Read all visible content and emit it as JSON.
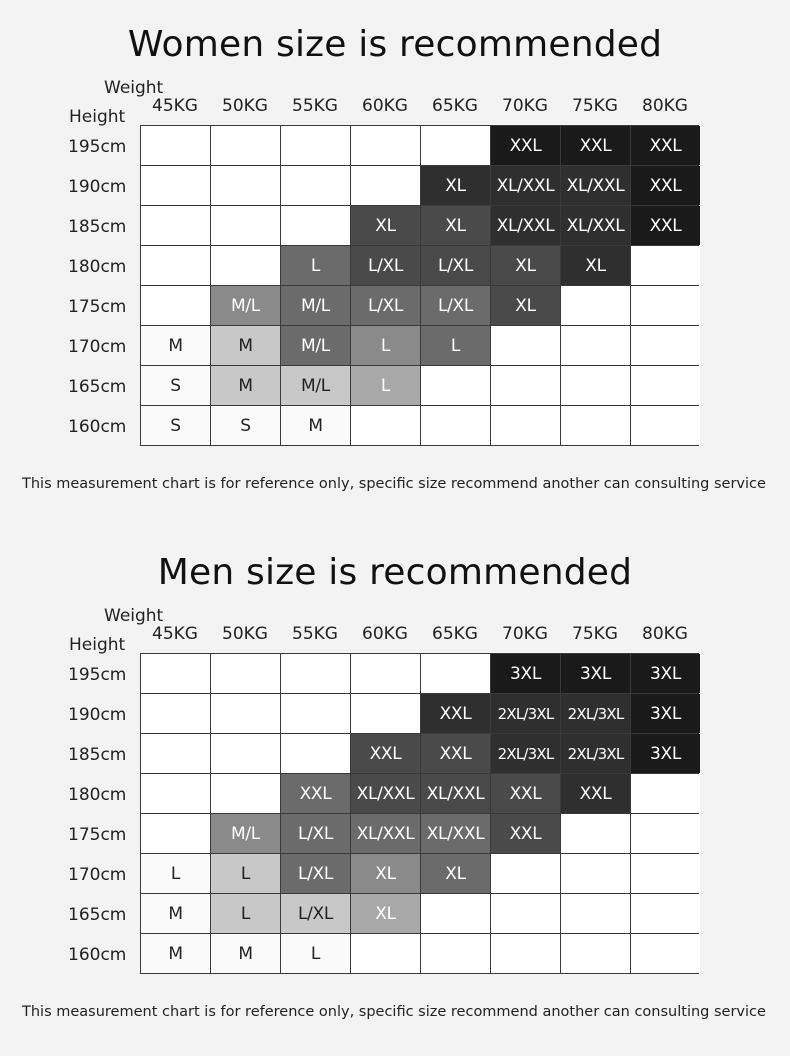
{
  "women": {
    "title": "Women size is recommended",
    "weight_label": "Weight",
    "height_label": "Height",
    "weights": [
      "45KG",
      "50KG",
      "55KG",
      "60KG",
      "65KG",
      "70KG",
      "75KG",
      "80KG"
    ],
    "heights": [
      "195cm",
      "190cm",
      "185cm",
      "180cm",
      "175cm",
      "170cm",
      "165cm",
      "160cm"
    ],
    "rows": [
      [
        "",
        "",
        "",
        "",
        "",
        "XXL",
        "XXL",
        "XXL"
      ],
      [
        "",
        "",
        "",
        "",
        "XL",
        "XL/XXL",
        "XL/XXL",
        "XXL"
      ],
      [
        "",
        "",
        "",
        "XL",
        "XL",
        "XL/XXL",
        "XL/XXL",
        "XXL"
      ],
      [
        "",
        "",
        "L",
        "L/XL",
        "L/XL",
        "XL",
        "XL",
        ""
      ],
      [
        "",
        "M/L",
        "M/L",
        "L/XL",
        "L/XL",
        "XL",
        "",
        ""
      ],
      [
        "M",
        "M",
        "M/L",
        "L",
        "L",
        "",
        "",
        ""
      ],
      [
        "S",
        "M",
        "M/L",
        "L",
        "",
        "",
        "",
        ""
      ],
      [
        "S",
        "S",
        "M",
        "",
        "",
        "",
        "",
        ""
      ]
    ],
    "note": "This measurement chart is for reference only, specific size recommend another can consulting service"
  },
  "men": {
    "title": "Men size is recommended",
    "weight_label": "Weight",
    "height_label": "Height",
    "weights": [
      "45KG",
      "50KG",
      "55KG",
      "60KG",
      "65KG",
      "70KG",
      "75KG",
      "80KG"
    ],
    "heights": [
      "195cm",
      "190cm",
      "185cm",
      "180cm",
      "175cm",
      "170cm",
      "165cm",
      "160cm"
    ],
    "rows": [
      [
        "",
        "",
        "",
        "",
        "",
        "3XL",
        "3XL",
        "3XL"
      ],
      [
        "",
        "",
        "",
        "",
        "XXL",
        "2XL/3XL",
        "2XL/3XL",
        "3XL"
      ],
      [
        "",
        "",
        "",
        "XXL",
        "XXL",
        "2XL/3XL",
        "2XL/3XL",
        "3XL"
      ],
      [
        "",
        "",
        "XXL",
        "XL/XXL",
        "XL/XXL",
        "XXL",
        "XXL",
        ""
      ],
      [
        "",
        "M/L",
        "L/XL",
        "XL/XXL",
        "XL/XXL",
        "XXL",
        "",
        ""
      ],
      [
        "L",
        "L",
        "L/XL",
        "XL",
        "XL",
        "",
        "",
        ""
      ],
      [
        "M",
        "L",
        "L/XL",
        "XL",
        "",
        "",
        "",
        ""
      ],
      [
        "M",
        "M",
        "L",
        "",
        "",
        "",
        "",
        ""
      ]
    ],
    "note": "This measurement chart is for reference only, specific size recommend another can consulting service"
  }
}
